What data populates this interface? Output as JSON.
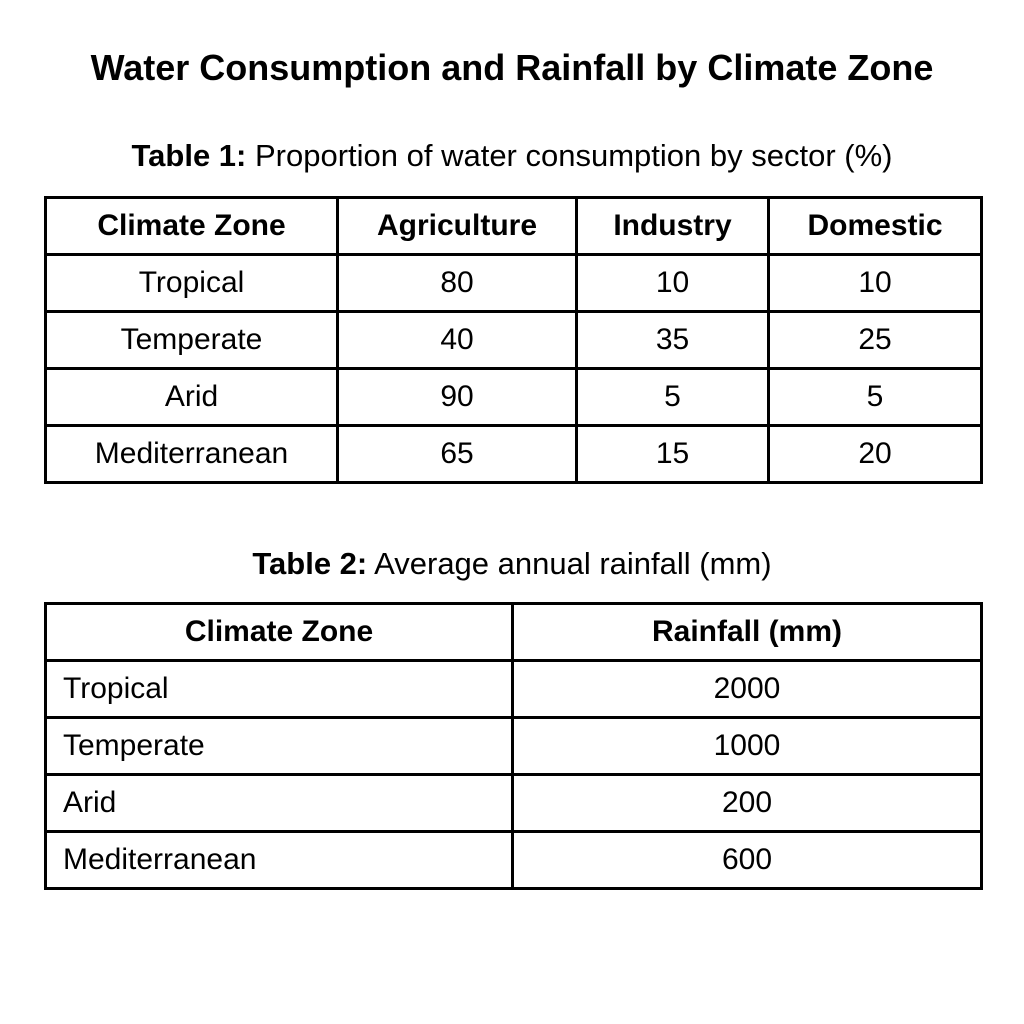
{
  "title": "Water Consumption and Rainfall by Climate Zone",
  "table1": {
    "caption_label": "Table 1:",
    "caption_text": " Proportion of water consumption by sector (%)",
    "headers": [
      "Climate Zone",
      "Agriculture",
      "Industry",
      "Domestic"
    ],
    "rows": [
      [
        "Tropical",
        "80",
        "10",
        "10"
      ],
      [
        "Temperate",
        "40",
        "35",
        "25"
      ],
      [
        "Arid",
        "90",
        "5",
        "5"
      ],
      [
        "Mediterranean",
        "65",
        "15",
        "20"
      ]
    ]
  },
  "table2": {
    "caption_label": "Table 2:",
    "caption_text": " Average annual rainfall (mm)",
    "headers": [
      "Climate Zone",
      "Rainfall (mm)"
    ],
    "rows": [
      [
        "Tropical",
        "2000"
      ],
      [
        "Temperate",
        "1000"
      ],
      [
        "Arid",
        "200"
      ],
      [
        "Mediterranean",
        "600"
      ]
    ]
  }
}
